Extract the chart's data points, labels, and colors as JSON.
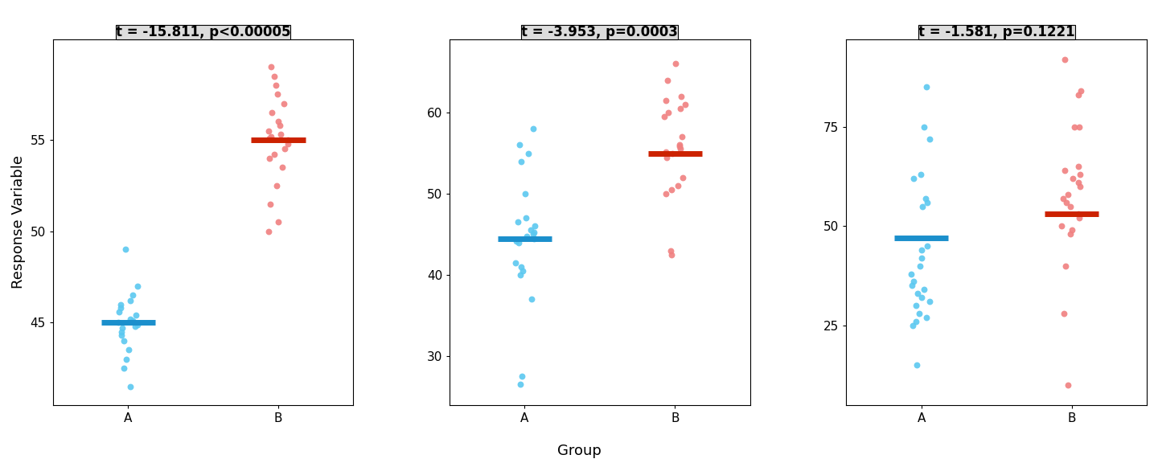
{
  "panels": [
    {
      "title": "t = -15.811, p<0.00005",
      "ylim": [
        40.5,
        60.5
      ],
      "yticks": [
        45,
        50,
        55
      ],
      "mean_A": 45.0,
      "mean_B": 55.0,
      "data_A": [
        49.0,
        47.0,
        46.5,
        46.2,
        46.0,
        45.8,
        45.6,
        45.4,
        45.2,
        45.1,
        45.0,
        44.9,
        44.8,
        44.7,
        44.5,
        44.3,
        44.0,
        43.5,
        43.0,
        42.5,
        41.5
      ],
      "data_B": [
        59.0,
        58.5,
        58.0,
        57.5,
        57.0,
        56.5,
        56.0,
        55.8,
        55.5,
        55.3,
        55.2,
        55.1,
        55.0,
        54.8,
        54.5,
        54.2,
        54.0,
        53.5,
        52.5,
        51.5,
        50.5,
        50.0
      ]
    },
    {
      "title": "t = -3.953, p=0.0003",
      "ylim": [
        24,
        69
      ],
      "yticks": [
        30,
        40,
        50,
        60
      ],
      "mean_A": 44.5,
      "mean_B": 55.0,
      "data_A": [
        58.0,
        56.0,
        55.0,
        54.0,
        50.0,
        47.0,
        46.5,
        46.0,
        45.5,
        45.2,
        45.0,
        44.8,
        44.5,
        44.2,
        44.0,
        41.5,
        41.0,
        40.5,
        40.0,
        37.0,
        27.5,
        26.5
      ],
      "data_B": [
        66.0,
        64.0,
        62.0,
        61.5,
        61.0,
        60.5,
        60.0,
        59.5,
        57.0,
        56.0,
        55.8,
        55.5,
        55.2,
        55.0,
        54.5,
        52.0,
        51.0,
        50.5,
        50.0,
        43.0,
        42.5
      ]
    },
    {
      "title": "t = -1.581, p=0.1221",
      "ylim": [
        5,
        97
      ],
      "yticks": [
        25,
        50,
        75
      ],
      "mean_A": 47.0,
      "mean_B": 53.0,
      "data_A": [
        85.0,
        75.0,
        72.0,
        63.0,
        62.0,
        57.0,
        56.0,
        55.0,
        45.0,
        44.0,
        42.0,
        40.0,
        38.0,
        36.0,
        35.0,
        34.0,
        33.0,
        32.0,
        31.0,
        30.0,
        28.0,
        27.0,
        26.0,
        25.0,
        15.0
      ],
      "data_B": [
        92.0,
        84.0,
        83.0,
        75.0,
        75.0,
        65.0,
        64.0,
        63.0,
        62.0,
        61.0,
        60.0,
        58.0,
        57.0,
        56.0,
        55.0,
        53.0,
        52.0,
        50.0,
        49.0,
        48.0,
        40.0,
        28.0,
        10.0
      ]
    }
  ],
  "color_A": "#5BC8F0",
  "color_B": "#F08080",
  "color_A_mean": "#1B8FCC",
  "color_B_mean": "#CC2200",
  "bg_panel": "#FFFFFF",
  "bg_strip": "#DCDCDC",
  "xlabel": "Group",
  "ylabel": "Response Variable",
  "title_fontsize": 12,
  "axis_fontsize": 11,
  "tick_fontsize": 11,
  "label_fontsize": 13
}
